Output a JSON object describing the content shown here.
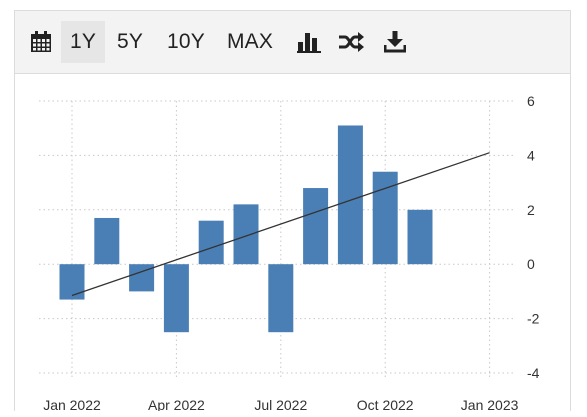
{
  "toolbar": {
    "icons": [
      "calendar-icon",
      "bar-chart-icon",
      "shuffle-icon",
      "download-icon"
    ],
    "ranges": [
      {
        "label": "1Y",
        "active": true
      },
      {
        "label": "5Y",
        "active": false
      },
      {
        "label": "10Y",
        "active": false
      },
      {
        "label": "MAX",
        "active": false
      }
    ]
  },
  "colors": {
    "bar": "#4a7fb5",
    "trend": "#333333",
    "grid": "#c8c8c8"
  },
  "chart_data": {
    "type": "bar",
    "x": [
      "2022-01",
      "2022-02",
      "2022-03",
      "2022-04",
      "2022-05",
      "2022-06",
      "2022-07",
      "2022-08",
      "2022-09",
      "2022-10",
      "2022-11"
    ],
    "values": [
      -1.3,
      1.7,
      -1.0,
      -2.5,
      1.6,
      2.2,
      -2.5,
      2.8,
      5.1,
      3.4,
      2.0
    ],
    "trendline": {
      "start": [
        "2022-01",
        -1.15
      ],
      "end": [
        "2023-01",
        4.1
      ]
    },
    "x_ticks": [
      "Jan 2022",
      "Apr 2022",
      "Jul 2022",
      "Oct 2022",
      "Jan 2023"
    ],
    "y_ticks": [
      "6",
      "4",
      "2",
      "0",
      "-2",
      "-4"
    ],
    "ylim": [
      -4,
      6
    ],
    "y_axis_position": "right",
    "grid": true
  }
}
